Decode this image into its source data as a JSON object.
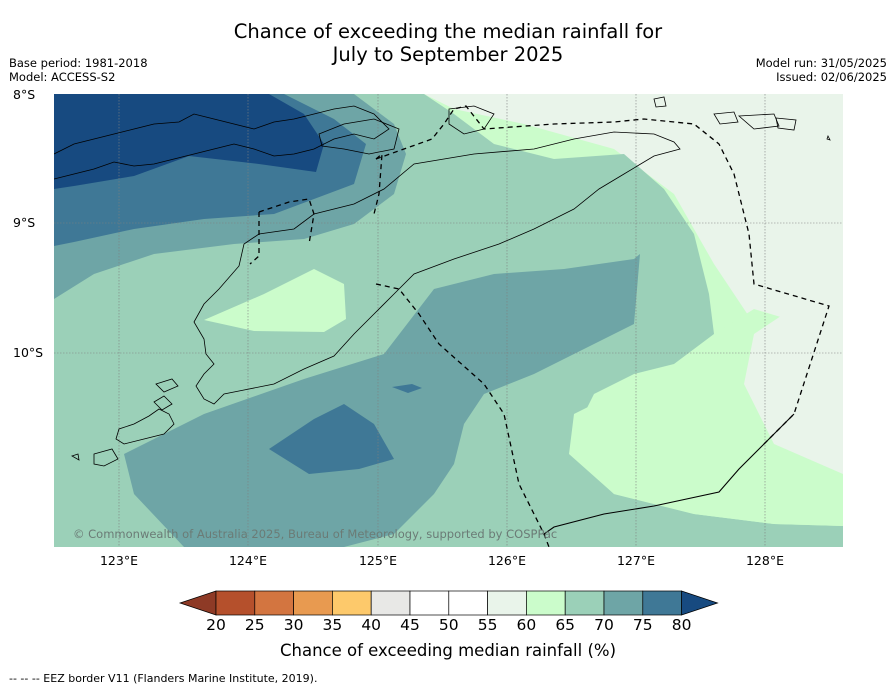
{
  "title_line1": "Chance of exceeding the median rainfall for",
  "title_line2": "July to September 2025",
  "meta_left": {
    "base_period": "Base period: 1981-2018",
    "model": "Model: ACCESS-S2"
  },
  "meta_right": {
    "model_run": "Model run: 31/05/2025",
    "issued": "Issued: 02/06/2025"
  },
  "map": {
    "lat_labels": [
      "8°S",
      "9°S",
      "10°S"
    ],
    "lon_labels": [
      "123°E",
      "124°E",
      "125°E",
      "126°E",
      "127°E",
      "128°E"
    ],
    "copyright": "© Commonwealth of Australia 2025, Bureau of Meteorology, supported by COSPPac"
  },
  "colorbar": {
    "ticks": [
      "20",
      "25",
      "30",
      "35",
      "40",
      "45",
      "50",
      "55",
      "60",
      "65",
      "70",
      "75",
      "80"
    ],
    "colors": [
      "#8e3a26",
      "#b5502c",
      "#d37540",
      "#e89a50",
      "#fdc96b",
      "#e8e8e6",
      "#ffffff",
      "#ffffff",
      "#e9f4ea",
      "#cbfccb",
      "#9bd0b8",
      "#6ea5a6",
      "#3f7896",
      "#174a80"
    ],
    "label": "Chance of exceeding median rainfall (%)"
  },
  "legend": {
    "eez": "--  --  -- EEZ border V11 (Flanders Marine Institute, 2019)."
  }
}
